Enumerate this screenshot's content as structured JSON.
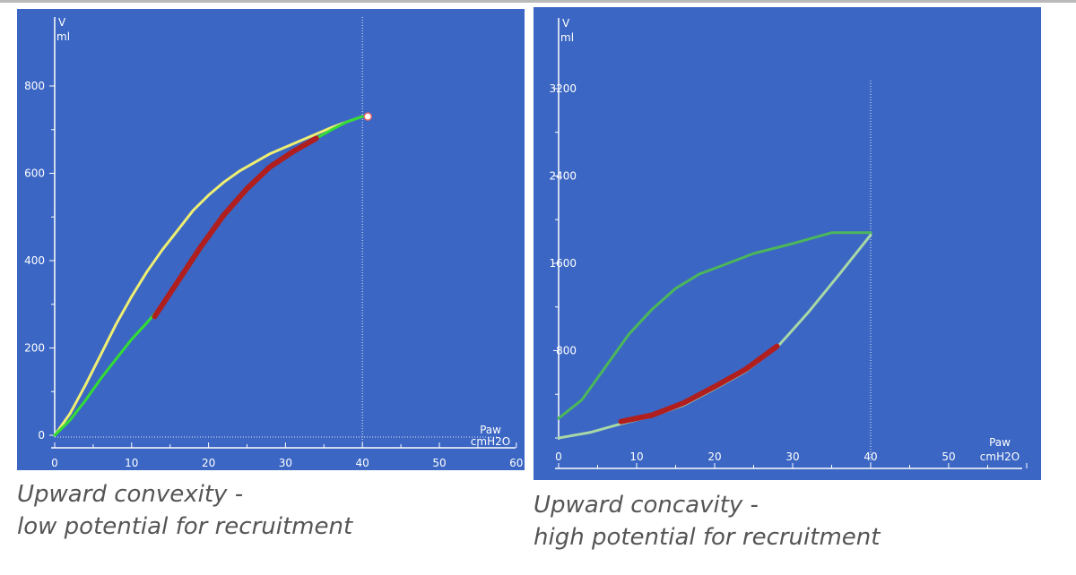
{
  "chart_data": [
    {
      "type": "line",
      "y_unit_top": "V",
      "y_unit_bottom": "ml",
      "x_unit_top": "Paw",
      "x_unit_bottom": "cmH2O",
      "xlim": [
        0,
        60
      ],
      "ylim": [
        0,
        800
      ],
      "xticks": [
        0,
        10,
        20,
        30,
        40,
        50,
        60
      ],
      "yticks": [
        0,
        200,
        400,
        600,
        800
      ],
      "reference_x": 40,
      "grid": false,
      "colors": {
        "background": "#3b66c3",
        "expiratory": "#eeee72",
        "inspiratory": "#33dd33",
        "fitted": "#b01e1e"
      },
      "series": [
        {
          "role": "expiratory",
          "points": [
            [
              0,
              0
            ],
            [
              2,
              50
            ],
            [
              4,
              115
            ],
            [
              6,
              185
            ],
            [
              8,
              255
            ],
            [
              10,
              318
            ],
            [
              12,
              375
            ],
            [
              14,
              425
            ],
            [
              16,
              470
            ],
            [
              18,
              515
            ],
            [
              20,
              550
            ],
            [
              22,
              580
            ],
            [
              24,
              605
            ],
            [
              26,
              625
            ],
            [
              28,
              645
            ],
            [
              30,
              660
            ],
            [
              32,
              675
            ],
            [
              34,
              690
            ],
            [
              36,
              705
            ],
            [
              38,
              718
            ],
            [
              40,
              730
            ]
          ]
        },
        {
          "role": "inspiratory",
          "points": [
            [
              0,
              0
            ],
            [
              2,
              35
            ],
            [
              4,
              80
            ],
            [
              6,
              130
            ],
            [
              8,
              175
            ],
            [
              10,
              220
            ],
            [
              12,
              258
            ],
            [
              14,
              300
            ],
            [
              16,
              355
            ],
            [
              18,
              410
            ],
            [
              20,
              460
            ],
            [
              22,
              505
            ],
            [
              24,
              545
            ],
            [
              26,
              585
            ],
            [
              28,
              615
            ],
            [
              30,
              640
            ],
            [
              32,
              660
            ],
            [
              34,
              680
            ],
            [
              36,
              700
            ],
            [
              38,
              718
            ],
            [
              40,
              730
            ]
          ]
        },
        {
          "role": "fitted",
          "points": [
            [
              13,
              272
            ],
            [
              16,
              352
            ],
            [
              19,
              432
            ],
            [
              22,
              505
            ],
            [
              25,
              565
            ],
            [
              28,
              615
            ],
            [
              31,
              650
            ],
            [
              34,
              680
            ]
          ]
        }
      ]
    },
    {
      "type": "line",
      "y_unit_top": "V",
      "y_unit_bottom": "ml",
      "x_unit_top": "Paw",
      "x_unit_bottom": "cmH2O",
      "xlim": [
        0,
        60
      ],
      "ylim": [
        0,
        3200
      ],
      "xticks": [
        0,
        10,
        20,
        30,
        40,
        50
      ],
      "yticks": [
        800,
        1600,
        2400,
        3200
      ],
      "reference_x": 40,
      "grid": false,
      "colors": {
        "background": "#3b66c3",
        "expiratory": "#4cb75a",
        "inspiratory": "#a8d8a8",
        "fitted": "#b01e1e"
      },
      "series": [
        {
          "role": "expiratory",
          "points": [
            [
              0,
              180
            ],
            [
              3,
              350
            ],
            [
              6,
              650
            ],
            [
              9,
              950
            ],
            [
              12,
              1180
            ],
            [
              15,
              1370
            ],
            [
              18,
              1500
            ],
            [
              21,
              1580
            ],
            [
              25,
              1690
            ],
            [
              30,
              1780
            ],
            [
              35,
              1880
            ],
            [
              40,
              1880
            ]
          ]
        },
        {
          "role": "inspiratory",
          "points": [
            [
              0,
              0
            ],
            [
              4,
              50
            ],
            [
              8,
              130
            ],
            [
              12,
              200
            ],
            [
              16,
              300
            ],
            [
              20,
              450
            ],
            [
              24,
              610
            ],
            [
              28,
              830
            ],
            [
              32,
              1150
            ],
            [
              36,
              1500
            ],
            [
              40,
              1860
            ]
          ]
        },
        {
          "role": "fitted",
          "points": [
            [
              8,
              150
            ],
            [
              12,
              210
            ],
            [
              16,
              320
            ],
            [
              20,
              470
            ],
            [
              24,
              630
            ],
            [
              28,
              840
            ]
          ]
        }
      ]
    }
  ],
  "captions": {
    "left": {
      "line1": "Upward convexity -",
      "line2": "low potential for recruitment"
    },
    "right": {
      "line1": "Upward concavity -",
      "line2": "high potential for recruitment"
    }
  }
}
